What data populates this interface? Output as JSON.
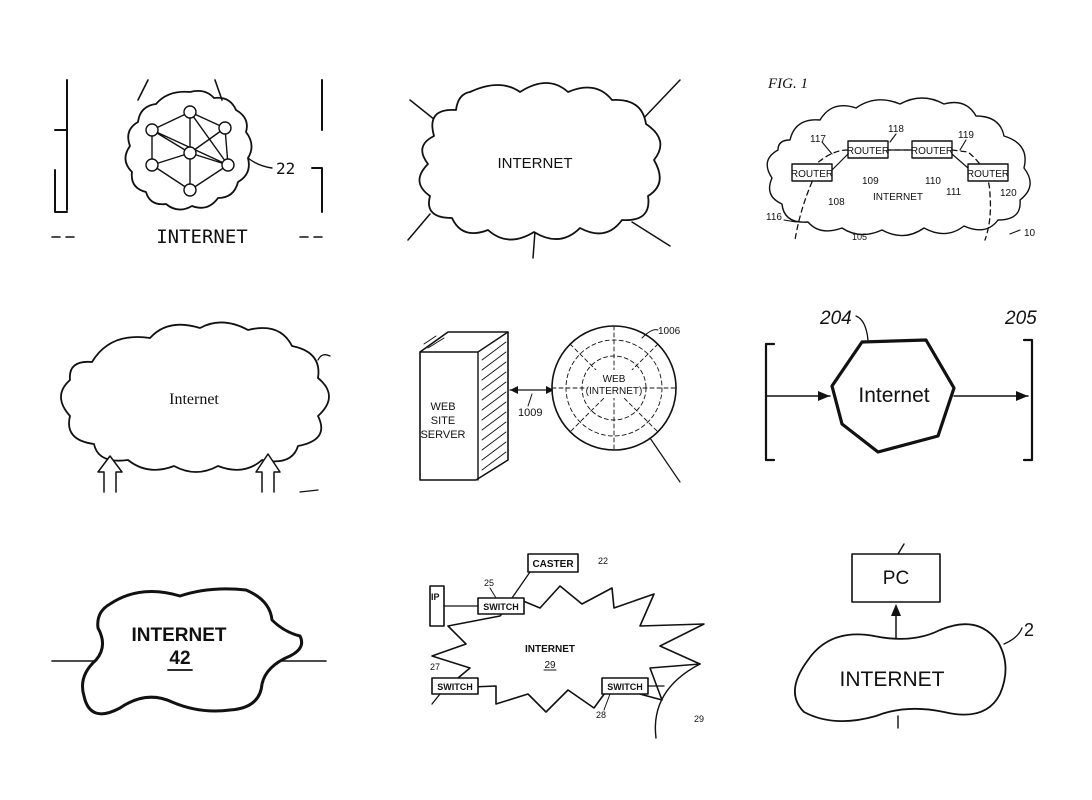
{
  "panels": [
    {
      "id": "p1",
      "cloud_label": "INTERNET",
      "ref": "22"
    },
    {
      "id": "p2",
      "cloud_label": "INTERNET"
    },
    {
      "id": "p3",
      "fig_label": "FIG. 1",
      "cloud_label": "INTERNET",
      "routers": [
        {
          "label": "ROUTER",
          "ref": "108"
        },
        {
          "label": "ROUTER",
          "ref": "109"
        },
        {
          "label": "ROUTER",
          "ref": "110"
        },
        {
          "label": "ROUTER",
          "ref": "111"
        }
      ],
      "refs": [
        "117",
        "118",
        "119",
        "120",
        "116",
        "105",
        "10"
      ]
    },
    {
      "id": "p4",
      "cloud_label": "Internet"
    },
    {
      "id": "p5",
      "server_label_1": "WEB",
      "server_label_2": "SITE",
      "server_label_3": "SERVER",
      "web_label_1": "WEB",
      "web_label_2": "(INTERNET)",
      "ref_link": "1009",
      "ref_web": "1006"
    },
    {
      "id": "p6",
      "hex_label": "Internet",
      "ref_left": "204",
      "ref_right": "205"
    },
    {
      "id": "p7",
      "cloud_label": "INTERNET",
      "ref": "42"
    },
    {
      "id": "p8",
      "cloud_label": "INTERNET",
      "cloud_ref": "29",
      "top_box": "CASTER",
      "top_ref": "22",
      "switch_label": "SWITCH",
      "left_box": "IP",
      "refs": [
        "25",
        "27",
        "28",
        "29"
      ]
    },
    {
      "id": "p9",
      "pc_label": "PC",
      "cloud_label": "INTERNET",
      "ref": "2"
    }
  ]
}
